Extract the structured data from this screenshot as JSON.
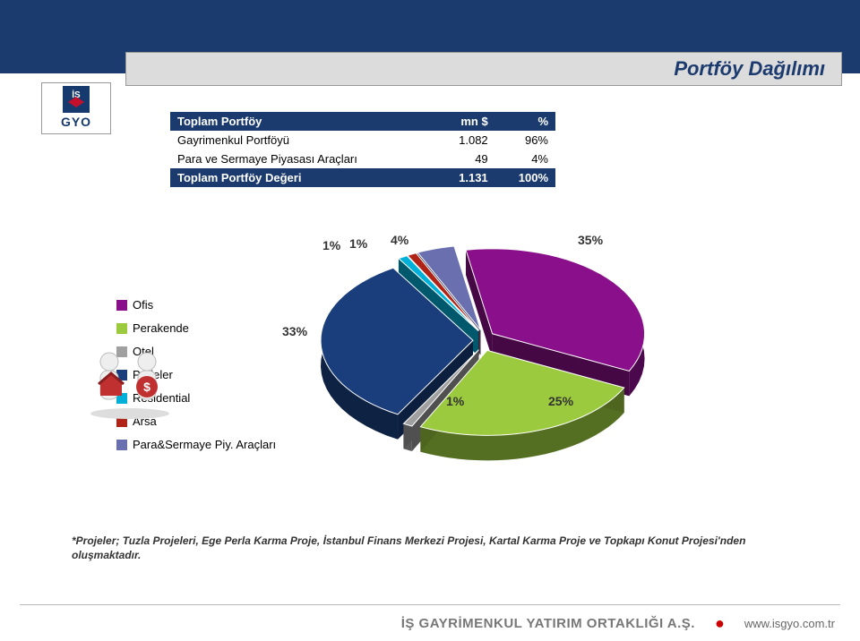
{
  "title": "Portföy Dağılımı",
  "logo": {
    "text": "GYO"
  },
  "table": {
    "header": {
      "c1": "Toplam Portföy",
      "c2": "mn $",
      "c3": "%"
    },
    "rows": [
      {
        "label": "Gayrimenkul Portföyü",
        "val": "1.082",
        "pct": "96%"
      },
      {
        "label": "Para ve Sermaye Piyasası Araçları",
        "val": "49",
        "pct": "4%"
      }
    ],
    "footer": {
      "label": "Toplam Portföy Değeri",
      "val": "1.131",
      "pct": "100%"
    }
  },
  "chart": {
    "type": "pie-3d",
    "slices": [
      {
        "name": "Ofis",
        "pct": 35,
        "color": "#8a0f8a"
      },
      {
        "name": "Perakende",
        "pct": 25,
        "color": "#9bca3e"
      },
      {
        "name": "Otel",
        "pct": 1,
        "color": "#a0a0a0"
      },
      {
        "name": "Projeler",
        "pct": 33,
        "color": "#1a3d7c"
      },
      {
        "name": "Residential",
        "pct": 1,
        "color": "#00b0d8"
      },
      {
        "name": "Arsa",
        "pct": 1,
        "color": "#b02418"
      },
      {
        "name": "Para&Sermaye Piy. Araçları",
        "pct": 4,
        "color": "#6a6fb0"
      }
    ],
    "label_fontsize": 14,
    "label_color": "#333333",
    "background": "#ffffff"
  },
  "legend": {
    "items": [
      {
        "label": "Ofis",
        "color": "#8a0f8a"
      },
      {
        "label": "Perakende",
        "color": "#9bca3e"
      },
      {
        "label": "Otel",
        "color": "#a0a0a0"
      },
      {
        "label": "Projeler",
        "color": "#1a3d7c"
      },
      {
        "label": "Residential",
        "color": "#00b0d8"
      },
      {
        "label": "Arsa",
        "color": "#b02418"
      },
      {
        "label": "Para&Sermaye Piy. Araçları",
        "color": "#6a6fb0"
      }
    ]
  },
  "pct_labels": {
    "p35": "35%",
    "p25": "25%",
    "p1a": "1%",
    "p33": "33%",
    "p1b": "1%",
    "p1c": "1%",
    "p4": "4%"
  },
  "footnote": "*Projeler; Tuzla Projeleri, Ege Perla Karma Proje, İstanbul Finans Merkezi Projesi, Kartal Karma Proje ve Topkapı Konut Projesi'nden oluşmaktadır.",
  "footer": {
    "company": "İŞ GAYRİMENKUL YATIRIM ORTAKLIĞI A.Ş.",
    "url": "www.isgyo.com.tr"
  }
}
